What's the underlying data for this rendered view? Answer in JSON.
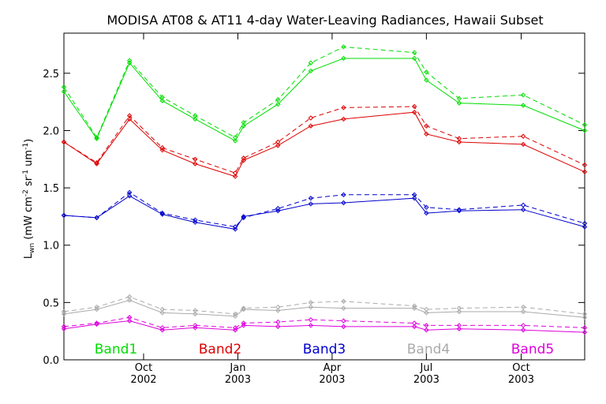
{
  "chart_data": {
    "type": "line",
    "title": "MODISA AT08 & AT11 4-day Water-Leaving Radiances, Hawaii Subset",
    "ylabel": {
      "base": "L",
      "sub": "wn",
      "unit_open": " (mW cm",
      "exp1": "-2",
      "mid": " sr",
      "exp2": "-1",
      "unit_close": " um",
      "exp3": "-1",
      "end": ")"
    },
    "xlim": [
      0,
      100
    ],
    "ylim": [
      0,
      2.85
    ],
    "yticks": [
      {
        "value": 0.0,
        "label": "0.0"
      },
      {
        "value": 0.5,
        "label": "0.5"
      },
      {
        "value": 1.0,
        "label": "1.0"
      },
      {
        "value": 1.5,
        "label": "1.5"
      },
      {
        "value": 2.0,
        "label": "2.0"
      },
      {
        "value": 2.5,
        "label": "2.5"
      }
    ],
    "xticks": [
      {
        "value": 15.3,
        "month": "Oct",
        "year": "2002"
      },
      {
        "value": 33.4,
        "month": "Jan",
        "year": "2003"
      },
      {
        "value": 51.5,
        "month": "Apr",
        "year": "2003"
      },
      {
        "value": 69.6,
        "month": "Jul",
        "year": "2003"
      },
      {
        "value": 87.8,
        "month": "Oct",
        "year": "2003"
      }
    ],
    "x": [
      0,
      6.3,
      12.6,
      18.9,
      25.2,
      32.9,
      34.5,
      41.1,
      47.4,
      53.7,
      67.3,
      69.6,
      75.9,
      88.2,
      100
    ],
    "series": [
      {
        "name": "Band1",
        "color": "#00dd00",
        "at08": [
          2.34,
          1.93,
          2.59,
          2.26,
          2.1,
          1.91,
          2.04,
          2.23,
          2.52,
          2.63,
          2.63,
          2.44,
          2.24,
          2.22,
          2.0
        ],
        "at11": [
          2.38,
          1.94,
          2.61,
          2.29,
          2.13,
          1.94,
          2.07,
          2.27,
          2.59,
          2.73,
          2.68,
          2.51,
          2.28,
          2.31,
          2.05
        ]
      },
      {
        "name": "Band2",
        "color": "#dd0000",
        "at08": [
          1.9,
          1.71,
          2.1,
          1.83,
          1.71,
          1.6,
          1.74,
          1.87,
          2.04,
          2.1,
          2.16,
          1.97,
          1.9,
          1.88,
          1.64
        ],
        "at11": [
          1.9,
          1.72,
          2.13,
          1.85,
          1.75,
          1.63,
          1.76,
          1.9,
          2.11,
          2.2,
          2.21,
          2.04,
          1.93,
          1.95,
          1.7
        ]
      },
      {
        "name": "Band3",
        "color": "#0000cc",
        "at08": [
          1.26,
          1.24,
          1.43,
          1.27,
          1.2,
          1.14,
          1.25,
          1.3,
          1.36,
          1.37,
          1.41,
          1.28,
          1.3,
          1.31,
          1.16
        ],
        "at11": [
          1.26,
          1.24,
          1.46,
          1.28,
          1.22,
          1.16,
          1.24,
          1.32,
          1.41,
          1.44,
          1.44,
          1.33,
          1.31,
          1.35,
          1.19
        ]
      },
      {
        "name": "Band4",
        "color": "#aaaaaa",
        "at08": [
          0.4,
          0.44,
          0.52,
          0.41,
          0.4,
          0.38,
          0.44,
          0.43,
          0.46,
          0.45,
          0.45,
          0.41,
          0.42,
          0.42,
          0.37
        ],
        "at11": [
          0.42,
          0.46,
          0.55,
          0.44,
          0.43,
          0.4,
          0.45,
          0.46,
          0.5,
          0.51,
          0.47,
          0.44,
          0.45,
          0.46,
          0.4
        ]
      },
      {
        "name": "Band5",
        "color": "#dd00dd",
        "at08": [
          0.27,
          0.31,
          0.34,
          0.26,
          0.28,
          0.26,
          0.3,
          0.29,
          0.3,
          0.29,
          0.29,
          0.26,
          0.27,
          0.26,
          0.24
        ],
        "at11": [
          0.29,
          0.32,
          0.37,
          0.28,
          0.3,
          0.28,
          0.32,
          0.33,
          0.35,
          0.34,
          0.32,
          0.3,
          0.3,
          0.3,
          0.28
        ]
      }
    ],
    "line_styles": {
      "at08": "solid",
      "at11": "dashed"
    },
    "legend_placement": "bottom, inside plot",
    "grid": false
  }
}
